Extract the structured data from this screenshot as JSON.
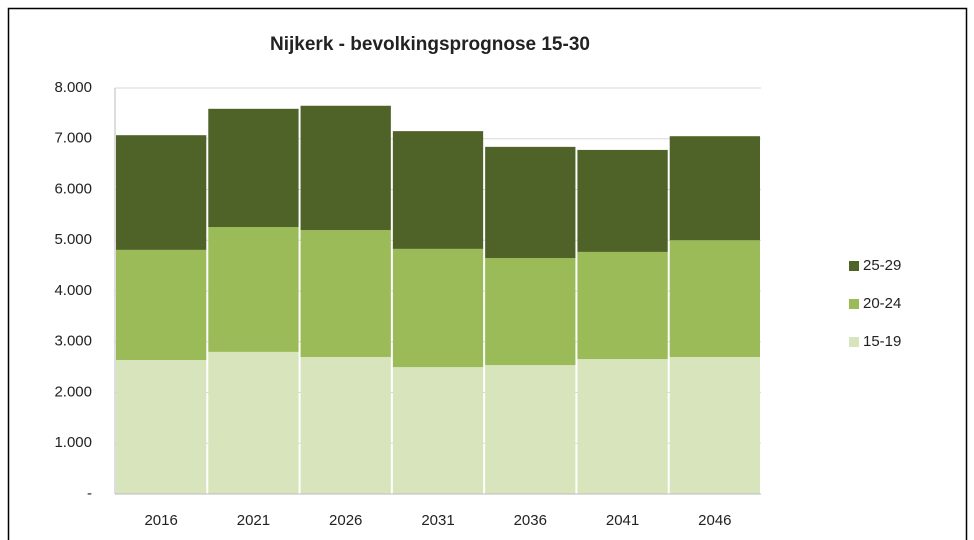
{
  "chart_data": {
    "type": "stacked_bar",
    "title": "Nijkerk - bevolkingsprognose 15-30",
    "categories": [
      "2016",
      "2021",
      "2026",
      "2031",
      "2036",
      "2041",
      "2046"
    ],
    "series": [
      {
        "name": "15-19",
        "color": "#d7e4bc",
        "values": [
          2640,
          2800,
          2700,
          2500,
          2540,
          2660,
          2700
        ]
      },
      {
        "name": "20-24",
        "color": "#9bbb59",
        "values": [
          2170,
          2460,
          2500,
          2330,
          2110,
          2110,
          2300
        ]
      },
      {
        "name": "25-29",
        "color": "#4f6228",
        "values": [
          2260,
          2330,
          2450,
          2320,
          2190,
          2010,
          2050
        ]
      }
    ],
    "ylim": [
      0,
      8000
    ],
    "yticks": [
      {
        "value": 0,
        "label": "-"
      },
      {
        "value": 1000,
        "label": "1.000"
      },
      {
        "value": 2000,
        "label": "2.000"
      },
      {
        "value": 3000,
        "label": "3.000"
      },
      {
        "value": 4000,
        "label": "4.000"
      },
      {
        "value": 5000,
        "label": "5.000"
      },
      {
        "value": 6000,
        "label": "6.000"
      },
      {
        "value": 7000,
        "label": "7.000"
      },
      {
        "value": 8000,
        "label": "8.000"
      }
    ],
    "grid": true,
    "legend": "right"
  }
}
